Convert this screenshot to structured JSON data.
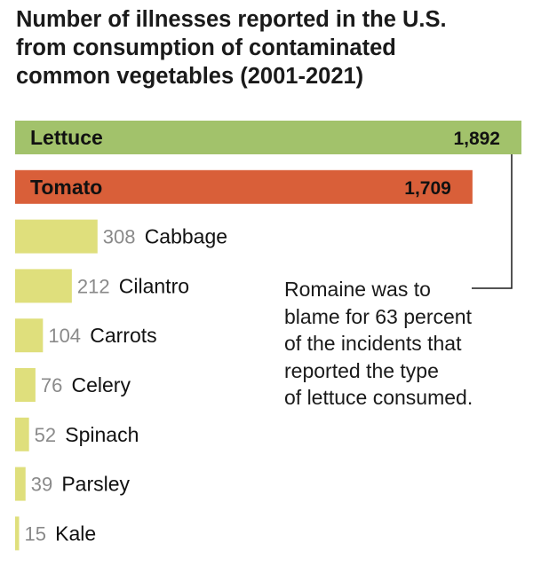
{
  "title_lines": [
    "Number of illnesses reported in the U.S.",
    "from consumption of contaminated",
    "common vegetables (2001-2021)"
  ],
  "annotation_lines": [
    "Romaine was to",
    "blame for 63 percent",
    "of the incidents that",
    "reported the type",
    "of lettuce consumed."
  ],
  "chart_data": {
    "type": "bar",
    "orientation": "horizontal",
    "title": "Number of illnesses reported in the U.S. from consumption of contaminated common vegetables (2001-2021)",
    "categories": [
      "Lettuce",
      "Tomato",
      "Cabbage",
      "Cilantro",
      "Carrots",
      "Celery",
      "Spinach",
      "Parsley",
      "Kale"
    ],
    "values": [
      1892,
      1709,
      308,
      212,
      104,
      76,
      52,
      39,
      15
    ],
    "value_labels": [
      "1,892",
      "1,709",
      "308",
      "212",
      "104",
      "76",
      "52",
      "39",
      "15"
    ],
    "colors": {
      "Lettuce": "#a2c26b",
      "Tomato": "#d95f39",
      "other": "#dfdf7c"
    },
    "label_color_dark": "#111111",
    "label_color_muted": "#8a8a8a",
    "annotation_target": "Lettuce",
    "xlabel": "",
    "ylabel": "",
    "grid": false
  }
}
